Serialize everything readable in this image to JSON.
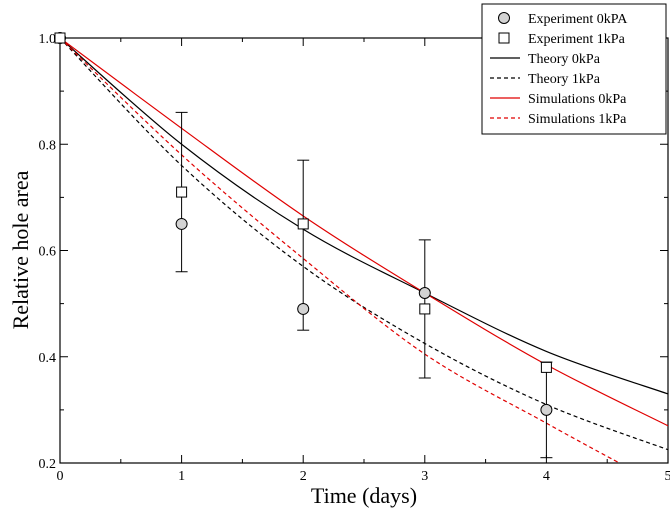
{
  "chart_data": {
    "type": "line",
    "title": "",
    "xlabel": "Time (days)",
    "ylabel": "Relative hole area",
    "xlim": [
      0,
      5
    ],
    "ylim": [
      0.2,
      1.0
    ],
    "x_ticks": [
      0,
      1,
      2,
      3,
      4,
      5
    ],
    "x_tick_labels": [
      "0",
      "1",
      "2",
      "3",
      "4",
      "5"
    ],
    "y_ticks": [
      0.2,
      0.4,
      0.6,
      0.8,
      1.0
    ],
    "y_tick_labels": [
      "0.2",
      "0.4",
      "0.6",
      "0.8",
      "1.0"
    ],
    "grid": false,
    "legend_position": "top-right",
    "series": [
      {
        "name": "Experiment 0kPA",
        "kind": "marker",
        "marker": "circle",
        "color": "#000000",
        "fill": "#d3d3d3",
        "x": [
          0,
          1,
          2,
          3,
          4
        ],
        "y": [
          1.0,
          0.65,
          0.49,
          0.52,
          0.3
        ],
        "err_low": [
          null,
          0.56,
          0.45,
          0.36,
          0.21
        ],
        "err_high": [
          null,
          0.86,
          0.77,
          0.62,
          0.39
        ]
      },
      {
        "name": "Experiment 1kPa",
        "kind": "marker",
        "marker": "square",
        "color": "#000000",
        "fill": "#ffffff",
        "x": [
          0,
          1,
          2,
          3,
          4
        ],
        "y": [
          1.0,
          0.71,
          0.65,
          0.49,
          0.38
        ]
      },
      {
        "name": "Theory 0kPa",
        "kind": "line",
        "dash": "solid",
        "color": "#000000",
        "x": [
          0,
          1,
          2,
          3,
          4,
          5
        ],
        "y": [
          1.0,
          0.8,
          0.64,
          0.52,
          0.41,
          0.33
        ]
      },
      {
        "name": "Theory 1kPa",
        "kind": "line",
        "dash": "dashed",
        "color": "#000000",
        "x": [
          0,
          1,
          2,
          3,
          4,
          5
        ],
        "y": [
          1.0,
          0.76,
          0.57,
          0.425,
          0.31,
          0.225
        ]
      },
      {
        "name": "Simulations 0kPa",
        "kind": "line",
        "dash": "solid",
        "color": "#e00000",
        "x": [
          0,
          1,
          2,
          3,
          4,
          5
        ],
        "y": [
          1.0,
          0.83,
          0.665,
          0.52,
          0.385,
          0.27
        ]
      },
      {
        "name": "Simulations 1kPa",
        "kind": "line",
        "dash": "dashed",
        "color": "#e00000",
        "x": [
          0,
          1,
          2,
          3,
          4,
          4.6
        ],
        "y": [
          1.0,
          0.78,
          0.585,
          0.405,
          0.275,
          0.2
        ]
      }
    ]
  }
}
